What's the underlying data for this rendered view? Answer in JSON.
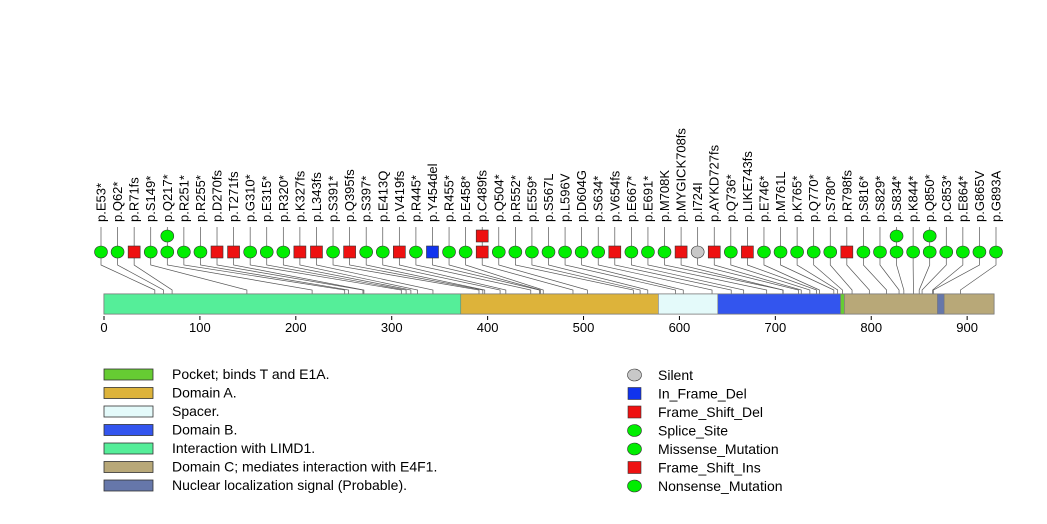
{
  "chart_data": {
    "type": "lollipop",
    "protein_length": 928,
    "x_axis": {
      "ticks": [
        0,
        100,
        200,
        300,
        400,
        500,
        600,
        700,
        800,
        900
      ],
      "range": [
        0,
        928
      ]
    },
    "domains": [
      {
        "name": "Interaction with LIMD1.",
        "start": 0,
        "end": 372,
        "color": "#55ee99"
      },
      {
        "name": "Domain A.",
        "start": 372,
        "end": 578,
        "color": "#ddb33a"
      },
      {
        "name": "Spacer.",
        "start": 578,
        "end": 640,
        "color": "#e4fafa"
      },
      {
        "name": "Domain B.",
        "start": 640,
        "end": 768,
        "color": "#3355ee"
      },
      {
        "name": "Pocket; binds T and E1A.",
        "start": 768,
        "end": 772,
        "color": "#66cc33"
      },
      {
        "name": "Domain C; mediates interaction with E4F1.",
        "start": 772,
        "end": 928,
        "color": "#b8a878"
      },
      {
        "name": "Nuclear localization signal (Probable).",
        "start": 869,
        "end": 876,
        "color": "#6677aa"
      }
    ],
    "mutations": [
      {
        "label": "p.E53*",
        "pos": 53,
        "type": "Nonsense_Mutation",
        "count": 1
      },
      {
        "label": "p.Q62*",
        "pos": 62,
        "type": "Nonsense_Mutation",
        "count": 1
      },
      {
        "label": "p.R71fs",
        "pos": 71,
        "type": "Frame_Shift_Del",
        "count": 1
      },
      {
        "label": "p.S149*",
        "pos": 149,
        "type": "Nonsense_Mutation",
        "count": 1
      },
      {
        "label": "p.Q217*",
        "pos": 217,
        "type": "Nonsense_Mutation",
        "count": 2
      },
      {
        "label": "p.R251*",
        "pos": 251,
        "type": "Nonsense_Mutation",
        "count": 1
      },
      {
        "label": "p.R255*",
        "pos": 255,
        "type": "Nonsense_Mutation",
        "count": 1
      },
      {
        "label": "p.D270fs",
        "pos": 270,
        "type": "Frame_Shift_Del",
        "count": 1
      },
      {
        "label": "p.T271fs",
        "pos": 271,
        "type": "Frame_Shift_Del",
        "count": 1
      },
      {
        "label": "p.G310*",
        "pos": 310,
        "type": "Nonsense_Mutation",
        "count": 1
      },
      {
        "label": "p.E315*",
        "pos": 315,
        "type": "Nonsense_Mutation",
        "count": 1
      },
      {
        "label": "p.R320*",
        "pos": 320,
        "type": "Nonsense_Mutation",
        "count": 1
      },
      {
        "label": "p.K327fs",
        "pos": 327,
        "type": "Frame_Shift_Del",
        "count": 1
      },
      {
        "label": "p.L343fs",
        "pos": 343,
        "type": "Frame_Shift_Del",
        "count": 1
      },
      {
        "label": "p.S391*",
        "pos": 391,
        "type": "Nonsense_Mutation",
        "count": 1
      },
      {
        "label": "p.Q395fs",
        "pos": 395,
        "type": "Frame_Shift_Del",
        "count": 1
      },
      {
        "label": "p.S397*",
        "pos": 397,
        "type": "Nonsense_Mutation",
        "count": 1
      },
      {
        "label": "p.E413Q",
        "pos": 413,
        "type": "Missense_Mutation",
        "count": 1
      },
      {
        "label": "p.V419fs",
        "pos": 419,
        "type": "Frame_Shift_Del",
        "count": 1
      },
      {
        "label": "p.R445*",
        "pos": 445,
        "type": "Nonsense_Mutation",
        "count": 1
      },
      {
        "label": "p.Y454del",
        "pos": 454,
        "type": "In_Frame_Del",
        "count": 1
      },
      {
        "label": "p.R455*",
        "pos": 455,
        "type": "Nonsense_Mutation",
        "count": 1
      },
      {
        "label": "p.E458*",
        "pos": 458,
        "type": "Nonsense_Mutation",
        "count": 1
      },
      {
        "label": "p.C489fs",
        "pos": 489,
        "type": "Frame_Shift_Del",
        "count": 2
      },
      {
        "label": "p.Q504*",
        "pos": 504,
        "type": "Nonsense_Mutation",
        "count": 1
      },
      {
        "label": "p.R552*",
        "pos": 552,
        "type": "Nonsense_Mutation",
        "count": 1
      },
      {
        "label": "p.E559*",
        "pos": 559,
        "type": "Nonsense_Mutation",
        "count": 1
      },
      {
        "label": "p.S567L",
        "pos": 567,
        "type": "Missense_Mutation",
        "count": 1
      },
      {
        "label": "p.L596V",
        "pos": 596,
        "type": "Missense_Mutation",
        "count": 1
      },
      {
        "label": "p.D604G",
        "pos": 604,
        "type": "Missense_Mutation",
        "count": 1
      },
      {
        "label": "p.S634*",
        "pos": 634,
        "type": "Nonsense_Mutation",
        "count": 1
      },
      {
        "label": "p.V654fs",
        "pos": 654,
        "type": "Frame_Shift_Del",
        "count": 1
      },
      {
        "label": "p.E667*",
        "pos": 667,
        "type": "Nonsense_Mutation",
        "count": 1
      },
      {
        "label": "p.E691*",
        "pos": 691,
        "type": "Nonsense_Mutation",
        "count": 1
      },
      {
        "label": "p.M708K",
        "pos": 708,
        "type": "Missense_Mutation",
        "count": 1
      },
      {
        "label": "p.MYGICK708fs",
        "pos": 708,
        "type": "Frame_Shift_Del",
        "count": 1
      },
      {
        "label": "p.I724I",
        "pos": 724,
        "type": "Silent",
        "count": 1
      },
      {
        "label": "p.AYKD727fs",
        "pos": 727,
        "type": "Frame_Shift_Del",
        "count": 1
      },
      {
        "label": "p.Q736*",
        "pos": 736,
        "type": "Nonsense_Mutation",
        "count": 1
      },
      {
        "label": "p.LIKE743fs",
        "pos": 743,
        "type": "Frame_Shift_Del",
        "count": 1
      },
      {
        "label": "p.E746*",
        "pos": 746,
        "type": "Nonsense_Mutation",
        "count": 1
      },
      {
        "label": "p.M761L",
        "pos": 761,
        "type": "Missense_Mutation",
        "count": 1
      },
      {
        "label": "p.K765*",
        "pos": 765,
        "type": "Nonsense_Mutation",
        "count": 1
      },
      {
        "label": "p.Q770*",
        "pos": 770,
        "type": "Nonsense_Mutation",
        "count": 1
      },
      {
        "label": "p.S780*",
        "pos": 780,
        "type": "Nonsense_Mutation",
        "count": 1
      },
      {
        "label": "p.R798fs",
        "pos": 798,
        "type": "Frame_Shift_Del",
        "count": 1
      },
      {
        "label": "p.S816*",
        "pos": 816,
        "type": "Nonsense_Mutation",
        "count": 1
      },
      {
        "label": "p.S829*",
        "pos": 829,
        "type": "Nonsense_Mutation",
        "count": 1
      },
      {
        "label": "p.S834*",
        "pos": 834,
        "type": "Nonsense_Mutation",
        "count": 2
      },
      {
        "label": "p.K844*",
        "pos": 844,
        "type": "Nonsense_Mutation",
        "count": 1
      },
      {
        "label": "p.Q850*",
        "pos": 850,
        "type": "Nonsense_Mutation",
        "count": 2
      },
      {
        "label": "p.C853*",
        "pos": 853,
        "type": "Nonsense_Mutation",
        "count": 1
      },
      {
        "label": "p.E864*",
        "pos": 864,
        "type": "Nonsense_Mutation",
        "count": 1
      },
      {
        "label": "p.G865V",
        "pos": 865,
        "type": "Missense_Mutation",
        "count": 1
      },
      {
        "label": "p.G893A",
        "pos": 893,
        "type": "Missense_Mutation",
        "count": 1
      }
    ],
    "domain_legend": [
      {
        "name": "Pocket; binds T and E1A.",
        "color": "#66cc33"
      },
      {
        "name": "Domain A.",
        "color": "#ddb33a"
      },
      {
        "name": "Spacer.",
        "color": "#e4fafa"
      },
      {
        "name": "Domain B.",
        "color": "#3355ee"
      },
      {
        "name": "Interaction with LIMD1.",
        "color": "#55ee99"
      },
      {
        "name": "Domain C; mediates interaction with E4F1.",
        "color": "#b8a878"
      },
      {
        "name": "Nuclear localization signal (Probable).",
        "color": "#6677aa"
      }
    ],
    "mutation_legend": [
      {
        "name": "Silent",
        "shape": "circle",
        "color": "#c8c8c8"
      },
      {
        "name": "In_Frame_Del",
        "shape": "square",
        "color": "#1133ee"
      },
      {
        "name": "Frame_Shift_Del",
        "shape": "square",
        "color": "#ee1111"
      },
      {
        "name": "Splice_Site",
        "shape": "circle",
        "color": "#00ee00"
      },
      {
        "name": "Missense_Mutation",
        "shape": "circle",
        "color": "#00ee00"
      },
      {
        "name": "Frame_Shift_Ins",
        "shape": "square",
        "color": "#ee1111"
      },
      {
        "name": "Nonsense_Mutation",
        "shape": "circle",
        "color": "#00ee00"
      }
    ],
    "type_styles": {
      "Silent": {
        "shape": "circle",
        "color": "#c8c8c8"
      },
      "In_Frame_Del": {
        "shape": "square",
        "color": "#1133ee"
      },
      "Frame_Shift_Del": {
        "shape": "square",
        "color": "#ee1111"
      },
      "Frame_Shift_Ins": {
        "shape": "square",
        "color": "#ee1111"
      },
      "Splice_Site": {
        "shape": "circle",
        "color": "#00ee00"
      },
      "Missense_Mutation": {
        "shape": "circle",
        "color": "#00ee00"
      },
      "Nonsense_Mutation": {
        "shape": "circle",
        "color": "#00ee00"
      }
    }
  }
}
